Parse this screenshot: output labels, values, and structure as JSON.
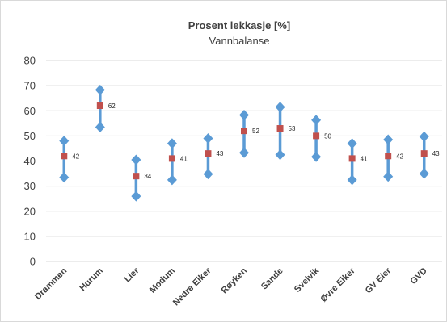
{
  "chart_data": {
    "type": "error-bar",
    "title": "Prosent lekkasje [%]",
    "subtitle": "Vannbalanse",
    "xlabel": "",
    "ylabel": "",
    "ylim": [
      0,
      80
    ],
    "yticks": [
      "0",
      "10",
      "20",
      "30",
      "40",
      "50",
      "60",
      "70",
      "80"
    ],
    "grid": true,
    "legend": "none",
    "categories": [
      "Drammen",
      "Hurum",
      "Lier",
      "Modum",
      "Nedre Eiker",
      "Røyken",
      "Sande",
      "Svelvik",
      "Øvre Eiker",
      "GV Eier",
      "GVD"
    ],
    "values": [
      42,
      62,
      34,
      41,
      43,
      52,
      53,
      50,
      41,
      42,
      43
    ],
    "value_labels": [
      "42",
      "62",
      "34",
      "41",
      "43",
      "52",
      "53",
      "50",
      "41",
      "42",
      "43"
    ],
    "low": [
      33.5,
      53.5,
      26,
      32.5,
      34.8,
      43.3,
      42.5,
      41.7,
      32.5,
      33.8,
      35
    ],
    "high": [
      48,
      68.3,
      40.5,
      47,
      49,
      58.3,
      61.5,
      56.3,
      47,
      48.5,
      49.7
    ],
    "colors": {
      "range": "#5b9bd5",
      "marker": "#c0504d",
      "grid": "#d9d9d9",
      "text": "#404040"
    }
  }
}
